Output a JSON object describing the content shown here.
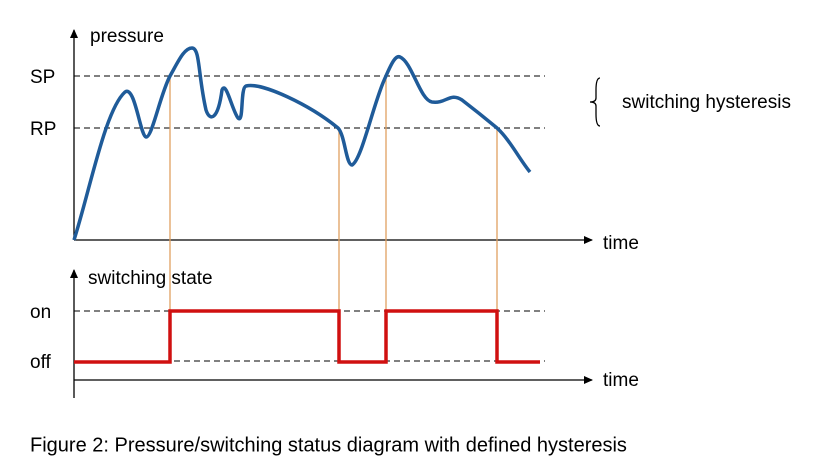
{
  "pressure_panel": {
    "y_axis_label": "pressure",
    "set_point": "SP",
    "reset_point": "RP",
    "hysteresis_label": "switching hysteresis",
    "x_axis_label": "time"
  },
  "state_panel": {
    "y_axis_label": "switching state",
    "on_label": "on",
    "off_label": "off",
    "x_axis_label": "time"
  },
  "caption": "Figure 2: Pressure/switching status diagram with defined hysteresis"
}
